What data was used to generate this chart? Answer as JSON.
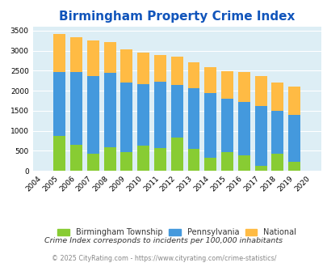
{
  "title": "Birmingham Property Crime Index",
  "years": [
    2004,
    2005,
    2006,
    2007,
    2008,
    2009,
    2010,
    2011,
    2012,
    2013,
    2014,
    2015,
    2016,
    2017,
    2018,
    2019,
    2020
  ],
  "birmingham": [
    0,
    880,
    660,
    430,
    590,
    470,
    640,
    560,
    840,
    540,
    320,
    470,
    390,
    120,
    420,
    220,
    0
  ],
  "pennsylvania": [
    0,
    2460,
    2470,
    2370,
    2440,
    2200,
    2175,
    2230,
    2155,
    2070,
    1945,
    1800,
    1720,
    1630,
    1490,
    1390,
    0
  ],
  "national": [
    0,
    3410,
    3335,
    3265,
    3215,
    3040,
    2945,
    2900,
    2855,
    2720,
    2580,
    2490,
    2460,
    2370,
    2200,
    2100,
    0
  ],
  "bar_width": 0.72,
  "birmingham_color": "#88cc33",
  "pennsylvania_color": "#4499dd",
  "national_color": "#ffbb44",
  "bg_color": "#ddeef5",
  "ylim": [
    0,
    3600
  ],
  "yticks": [
    0,
    500,
    1000,
    1500,
    2000,
    2500,
    3000,
    3500
  ],
  "title_color": "#1155bb",
  "title_fontsize": 11,
  "legend_labels": [
    "Birmingham Township",
    "Pennsylvania",
    "National"
  ],
  "footnote1": "Crime Index corresponds to incidents per 100,000 inhabitants",
  "footnote2": "© 2025 CityRating.com - https://www.cityrating.com/crime-statistics/",
  "footnote1_color": "#333333",
  "footnote2_color": "#888888"
}
